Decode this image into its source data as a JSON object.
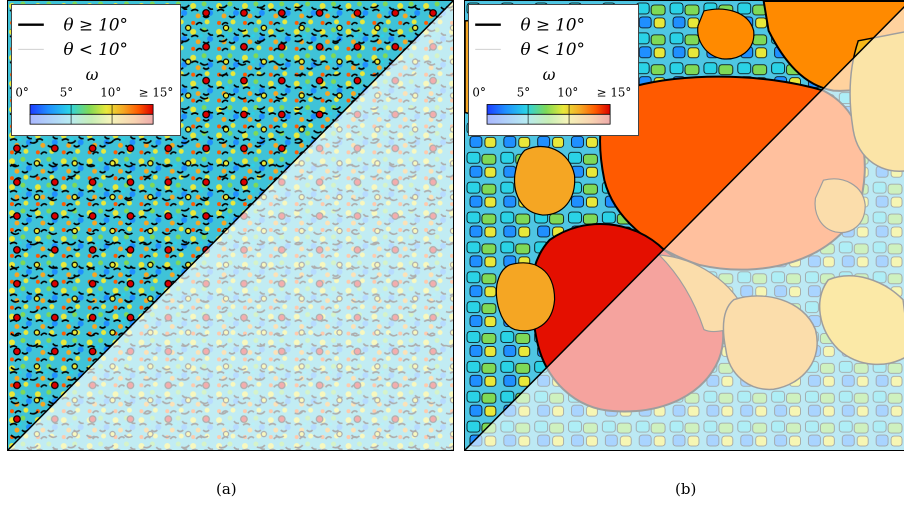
{
  "panels": [
    {
      "id": "a",
      "caption": "(a)",
      "legend": {
        "high_angle_label": "θ ≥ 10°",
        "low_angle_label": "θ < 10°",
        "colorbar_title": "ω",
        "ticks": [
          "0°",
          "5°",
          "10°",
          "≥ 15°"
        ]
      }
    },
    {
      "id": "b",
      "caption": "(b)",
      "legend": {
        "high_angle_label": "θ ≥ 10°",
        "low_angle_label": "θ < 10°",
        "colorbar_title": "ω",
        "ticks": [
          "0°",
          "5°",
          "10°",
          "≥ 15°"
        ]
      }
    }
  ],
  "colormap": [
    "#1e3cff",
    "#1f8fff",
    "#2ad2e6",
    "#7ed957",
    "#e8e83a",
    "#f5a623",
    "#ff5a00",
    "#d90000"
  ],
  "colors": {
    "high_angle_boundary": "#000000",
    "low_angle_boundary": "#c9c9c9",
    "faded_overlay": "#ffffff"
  }
}
